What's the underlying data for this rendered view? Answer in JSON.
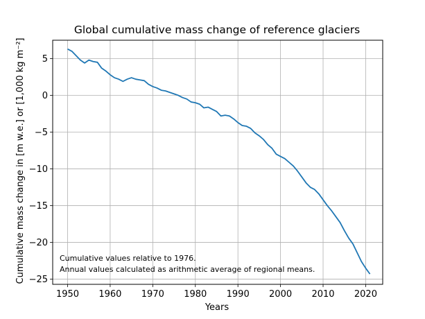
{
  "chart_data": {
    "type": "line",
    "title": "Global cumulative mass change of reference glaciers",
    "xlabel": "Years",
    "ylabel": "Cumulative mass change in [m w.e.] or [1,000 kg m⁻²]",
    "xlim": [
      1946.5,
      2024
    ],
    "ylim": [
      -25.7,
      7.5
    ],
    "xticks": [
      1950,
      1960,
      1970,
      1980,
      1990,
      2000,
      2010,
      2020
    ],
    "yticks": [
      5,
      0,
      -5,
      -10,
      -15,
      -20,
      -25
    ],
    "ytick_labels": [
      "5",
      "0",
      "−5",
      "−10",
      "−15",
      "−20",
      "−25"
    ],
    "grid": true,
    "line_color": "#1f77b4",
    "annotations": [
      "Cumulative values relative to 1976.",
      "Annual values calculated as arithmetic average of regional means."
    ],
    "series": [
      {
        "x": [
          1950,
          1951,
          1952,
          1953,
          1954,
          1955,
          1956,
          1957,
          1958,
          1959,
          1960,
          1961,
          1962,
          1963,
          1964,
          1965,
          1966,
          1967,
          1968,
          1969,
          1970,
          1971,
          1972,
          1973,
          1974,
          1975,
          1976,
          1977,
          1978,
          1979,
          1980,
          1981,
          1982,
          1983,
          1984,
          1985,
          1986,
          1987,
          1988,
          1989,
          1990,
          1991,
          1992,
          1993,
          1994,
          1995,
          1996,
          1997,
          1998,
          1999,
          2000,
          2001,
          2002,
          2003,
          2004,
          2005,
          2006,
          2007,
          2008,
          2009,
          2010,
          2011,
          2012,
          2013,
          2014,
          2015,
          2016,
          2017,
          2018,
          2019,
          2020,
          2021
        ],
        "values": [
          6.3,
          6.0,
          5.4,
          4.8,
          4.4,
          4.8,
          4.6,
          4.5,
          3.7,
          3.3,
          2.8,
          2.4,
          2.2,
          1.9,
          2.2,
          2.4,
          2.2,
          2.1,
          2.0,
          1.5,
          1.2,
          1.0,
          0.7,
          0.6,
          0.4,
          0.2,
          0.0,
          -0.3,
          -0.5,
          -0.9,
          -1.0,
          -1.2,
          -1.7,
          -1.6,
          -1.9,
          -2.2,
          -2.8,
          -2.7,
          -2.8,
          -3.2,
          -3.7,
          -4.1,
          -4.2,
          -4.5,
          -5.1,
          -5.5,
          -6.0,
          -6.7,
          -7.2,
          -8.0,
          -8.3,
          -8.6,
          -9.1,
          -9.6,
          -10.3,
          -11.1,
          -11.9,
          -12.5,
          -12.8,
          -13.4,
          -14.2,
          -15.0,
          -15.7,
          -16.5,
          -17.3,
          -18.4,
          -19.4,
          -20.2,
          -21.4,
          -22.6,
          -23.5,
          -24.3
        ]
      }
    ]
  }
}
